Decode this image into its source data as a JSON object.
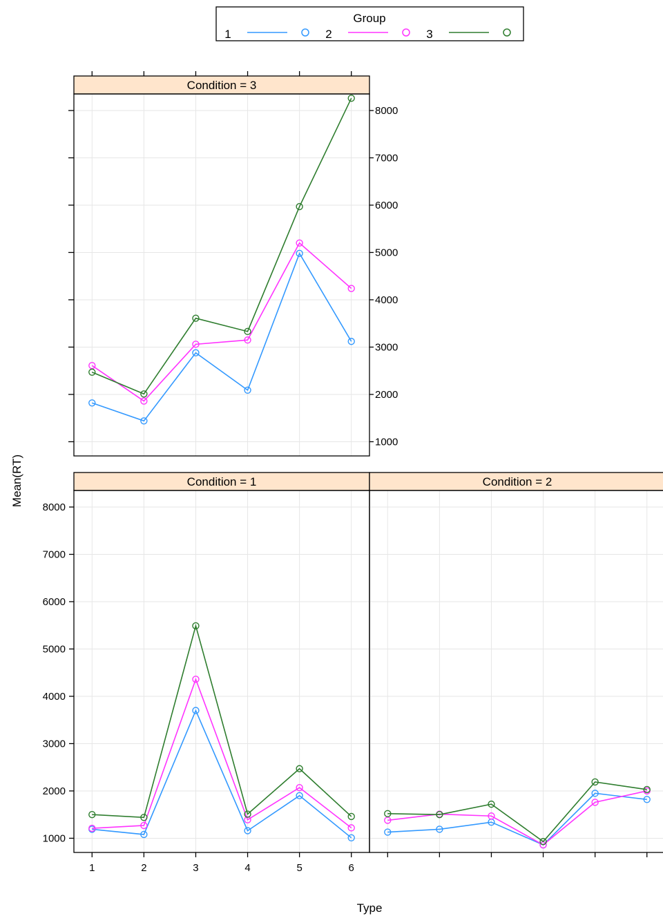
{
  "colors": {
    "strip_fill": "#ffe5cc",
    "group_1": "#3399ff",
    "group_2": "#ff33ff",
    "group_3": "#2e7d2e",
    "grid": "#e6e6e6"
  },
  "legend": {
    "title": "Group",
    "entries": [
      {
        "label": "1",
        "color": "#3399ff"
      },
      {
        "label": "2",
        "color": "#ff33ff"
      },
      {
        "label": "3",
        "color": "#2e7d2e"
      }
    ]
  },
  "chart_data": {
    "type": "line",
    "xlabel": "Type",
    "ylabel": "Mean(RT)",
    "x": [
      1,
      2,
      3,
      4,
      5,
      6
    ],
    "x_tick_labels": [
      "1",
      "2",
      "3",
      "4",
      "5",
      "6"
    ],
    "ylim": [
      700,
      8350
    ],
    "y_ticks": [
      1000,
      2000,
      3000,
      4000,
      5000,
      6000,
      7000,
      8000
    ],
    "y_tick_labels": [
      "1000",
      "2000",
      "3000",
      "4000",
      "5000",
      "6000",
      "7000",
      "8000"
    ],
    "grid": true,
    "legend_position": "top",
    "panels": [
      {
        "strip": "Condition = 3",
        "series": [
          {
            "name": "1",
            "values": [
              1820,
              1440,
              2880,
              2090,
              4980,
              3120
            ]
          },
          {
            "name": "2",
            "values": [
              2610,
              1860,
              3060,
              3150,
              5200,
              4240
            ]
          },
          {
            "name": "3",
            "values": [
              2470,
              2010,
              3610,
              3330,
              5970,
              8260
            ]
          }
        ]
      },
      {
        "strip": "Condition = 1",
        "series": [
          {
            "name": "1",
            "values": [
              1190,
              1080,
              3700,
              1160,
              1900,
              1010
            ]
          },
          {
            "name": "2",
            "values": [
              1210,
              1270,
              4360,
              1390,
              2070,
              1220
            ]
          },
          {
            "name": "3",
            "values": [
              1500,
              1440,
              5490,
              1510,
              2470,
              1460
            ]
          }
        ]
      },
      {
        "strip": "Condition = 2",
        "series": [
          {
            "name": "1",
            "values": [
              1130,
              1190,
              1340,
              860,
              1950,
              1820
            ]
          },
          {
            "name": "2",
            "values": [
              1380,
              1510,
              1470,
              860,
              1760,
              2000
            ]
          },
          {
            "name": "3",
            "values": [
              1520,
              1500,
              1720,
              930,
              2190,
              2030
            ]
          }
        ]
      }
    ]
  }
}
